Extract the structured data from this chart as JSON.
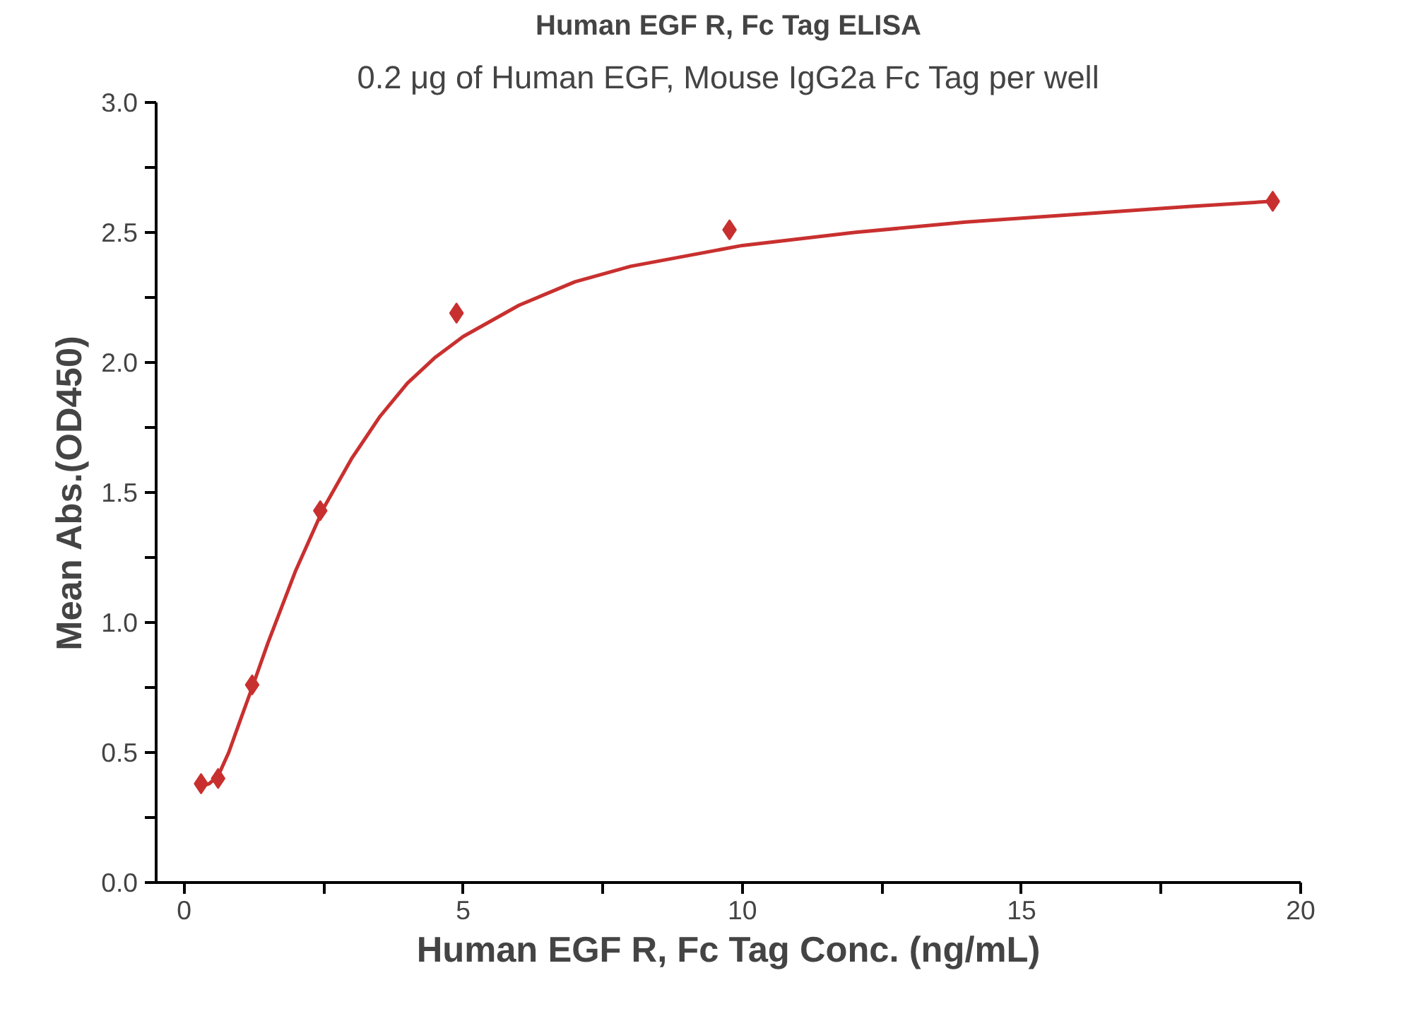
{
  "chart_data": {
    "type": "scatter",
    "title": "Human EGF R, Fc Tag ELISA",
    "subtitle": "0.2 μg of Human EGF, Mouse IgG2a Fc Tag per well",
    "xlabel": "Human EGF R, Fc Tag Conc. (ng/mL)",
    "ylabel": "Mean Abs.(OD450)",
    "xlim": [
      -0.5,
      20
    ],
    "ylim": [
      0,
      3.0
    ],
    "xticks": [
      0,
      {
        "value": 2.5,
        "label": null
      },
      5,
      {
        "value": 7.5,
        "label": null
      },
      10,
      {
        "value": 12.5,
        "label": null
      },
      15,
      {
        "value": 17.5,
        "label": null
      },
      20
    ],
    "yticks": [
      {
        "value": 0,
        "label": "0.0"
      },
      {
        "value": 0.25,
        "label": null
      },
      0.5,
      {
        "value": 0.75,
        "label": null
      },
      {
        "value": 1,
        "label": "1.0"
      },
      {
        "value": 1.25,
        "label": null
      },
      1.5,
      {
        "value": 1.75,
        "label": null
      },
      {
        "value": 2,
        "label": "2.0"
      },
      {
        "value": 2.25,
        "label": null
      },
      2.5,
      {
        "value": 2.75,
        "label": null
      },
      {
        "value": 3,
        "label": "3.0"
      }
    ],
    "grid": false,
    "series": [
      {
        "marker": "diamond",
        "color": "#c8302f",
        "x": [
          0.305,
          0.61,
          1.22,
          2.44,
          4.88,
          9.77,
          19.5
        ],
        "values": [
          0.38,
          0.4,
          0.76,
          1.43,
          2.19,
          2.51,
          2.62
        ]
      },
      {
        "type": "line",
        "marker": "none",
        "color": "#c8302f",
        "x": [
          0.305,
          0.45,
          0.61,
          0.8,
          1.0,
          1.22,
          1.5,
          2.0,
          2.5,
          3.0,
          3.5,
          4.0,
          4.5,
          5.0,
          6.0,
          7.0,
          8.0,
          9.0,
          10.0,
          12.0,
          14.0,
          16.0,
          18.0,
          19.5
        ],
        "values": [
          0.37,
          0.38,
          0.41,
          0.5,
          0.62,
          0.75,
          0.92,
          1.2,
          1.44,
          1.63,
          1.79,
          1.92,
          2.02,
          2.1,
          2.22,
          2.31,
          2.37,
          2.41,
          2.45,
          2.5,
          2.54,
          2.57,
          2.6,
          2.62
        ]
      }
    ]
  }
}
